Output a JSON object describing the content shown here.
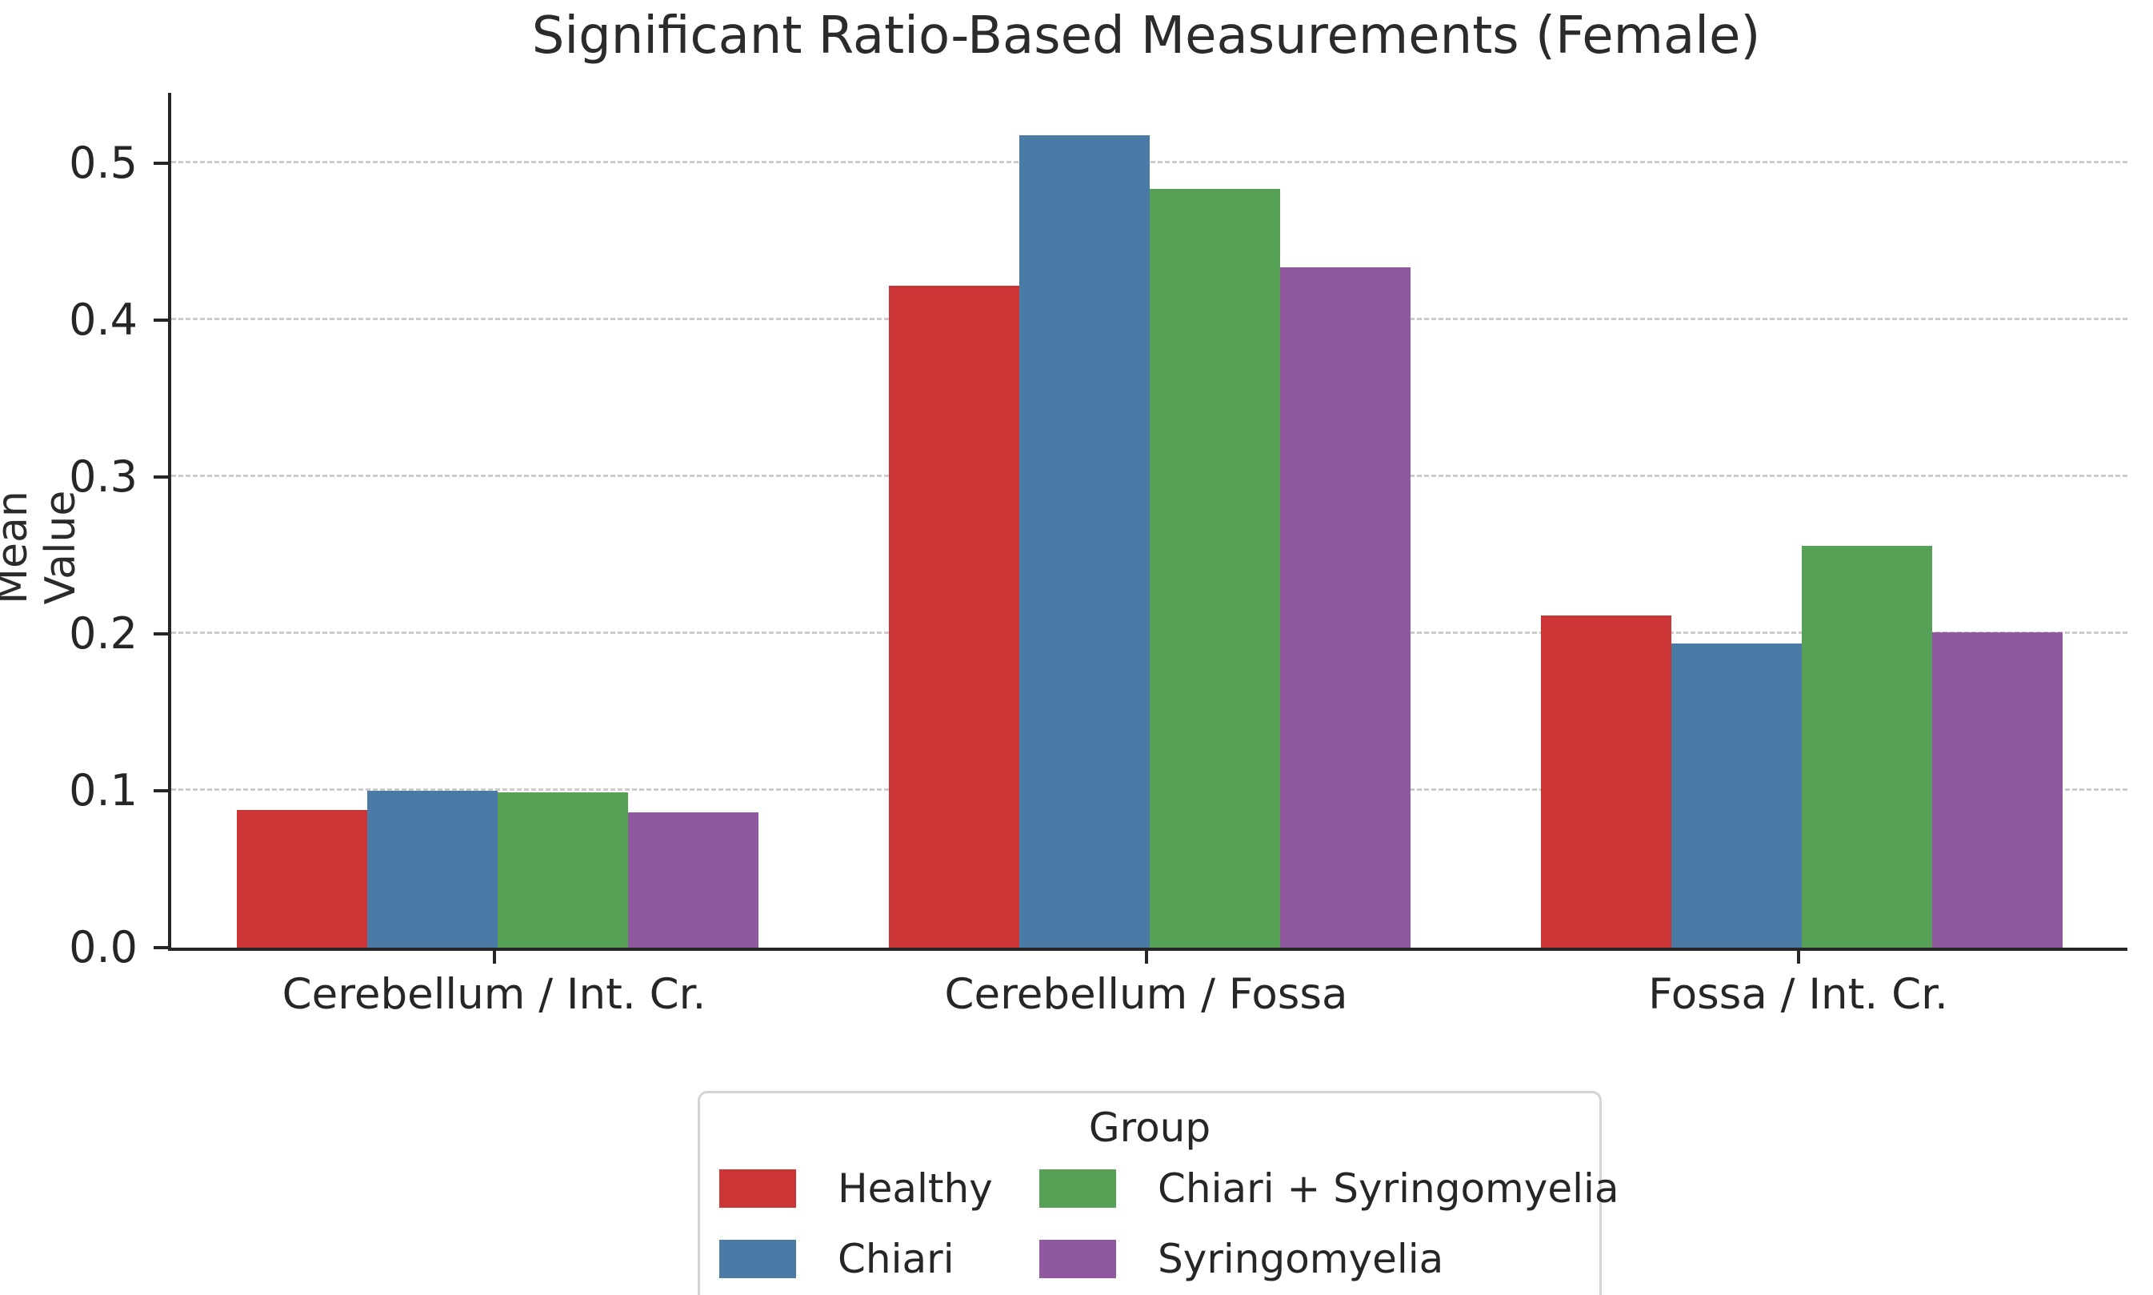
{
  "title": "Significant Ratio-Based Measurements (Female)",
  "chart_data": {
    "type": "bar",
    "title": "Significant Ratio-Based Measurements (Female)",
    "xlabel": "",
    "ylabel": "Mean Value",
    "ylim": [
      0,
      0.545
    ],
    "yticks": [
      "0.0",
      "0.1",
      "0.2",
      "0.3",
      "0.4",
      "0.5"
    ],
    "grid": "horizontal-dashed",
    "categories": [
      "Cerebellum / Int. Cr.",
      "Cerebellum / Fossa",
      "Fossa / Int. Cr."
    ],
    "series": [
      {
        "name": "Healthy",
        "color": "#cb3536",
        "values": [
          0.088,
          0.422,
          0.212
        ]
      },
      {
        "name": "Chiari",
        "color": "#4a7ba7",
        "values": [
          0.1,
          0.518,
          0.194
        ]
      },
      {
        "name": "Chiari + Syringomyelia",
        "color": "#56a156",
        "values": [
          0.099,
          0.484,
          0.256
        ]
      },
      {
        "name": "Syringomyelia",
        "color": "#90599f",
        "values": [
          0.086,
          0.434,
          0.201
        ]
      }
    ],
    "legend": {
      "title": "Group",
      "position": "bottom-center",
      "columns": 2
    },
    "colors": {
      "grid": "#cccccc",
      "spine": "#262626",
      "text": "#262626",
      "legend_border": "#d4d4d4",
      "background": "#ffffff"
    }
  }
}
